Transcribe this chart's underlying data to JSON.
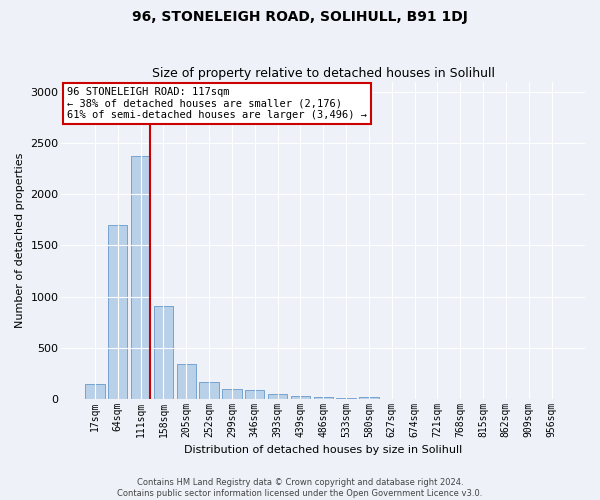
{
  "title": "96, STONELEIGH ROAD, SOLIHULL, B91 1DJ",
  "subtitle": "Size of property relative to detached houses in Solihull",
  "xlabel": "Distribution of detached houses by size in Solihull",
  "ylabel": "Number of detached properties",
  "bar_color": "#b8d0e8",
  "bar_edge_color": "#6699cc",
  "background_color": "#eef2f8",
  "grid_color": "#ffffff",
  "categories": [
    "17sqm",
    "64sqm",
    "111sqm",
    "158sqm",
    "205sqm",
    "252sqm",
    "299sqm",
    "346sqm",
    "393sqm",
    "439sqm",
    "486sqm",
    "533sqm",
    "580sqm",
    "627sqm",
    "674sqm",
    "721sqm",
    "768sqm",
    "815sqm",
    "862sqm",
    "909sqm",
    "956sqm"
  ],
  "values": [
    140,
    1700,
    2380,
    910,
    340,
    160,
    90,
    80,
    50,
    30,
    20,
    10,
    15,
    0,
    0,
    0,
    0,
    0,
    0,
    0,
    0
  ],
  "ylim": [
    0,
    3100
  ],
  "yticks": [
    0,
    500,
    1000,
    1500,
    2000,
    2500,
    3000
  ],
  "property_bin_index": 2,
  "annotation_title": "96 STONELEIGH ROAD: 117sqm",
  "annotation_line1": "← 38% of detached houses are smaller (2,176)",
  "annotation_line2": "61% of semi-detached houses are larger (3,496) →",
  "annotation_box_color": "#ffffff",
  "annotation_box_edge_color": "#cc0000",
  "vline_color": "#cc0000",
  "footer_line1": "Contains HM Land Registry data © Crown copyright and database right 2024.",
  "footer_line2": "Contains public sector information licensed under the Open Government Licence v3.0."
}
